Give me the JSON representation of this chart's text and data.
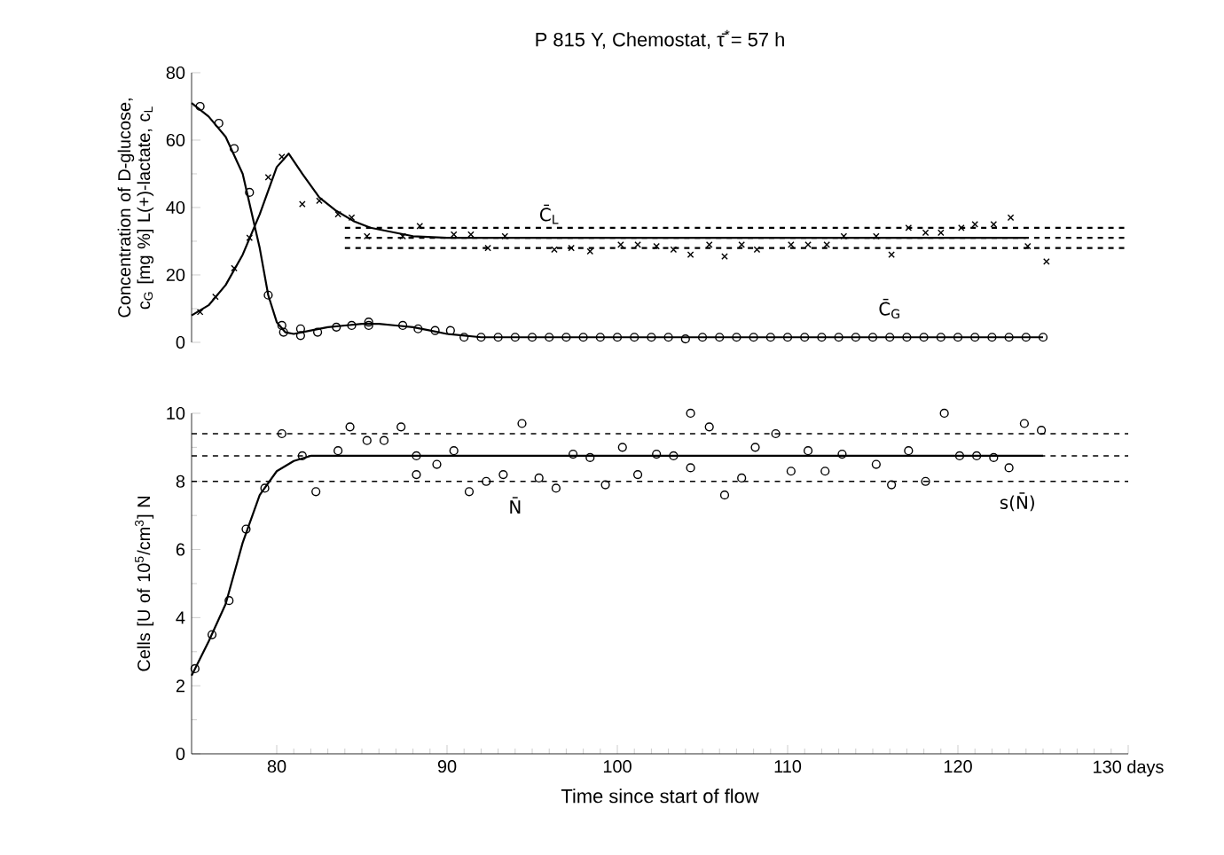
{
  "chart_data": [
    {
      "type": "scatter",
      "title": "P 815 Y, Chemostat, τ̄$^{*}$= 57 h",
      "ylabel": "Concentration of D-glucose, c$_{G}$ [mg %] L(+)-lactate, c$_{L}$",
      "xlim": [
        75,
        130
      ],
      "ylim": [
        0,
        80
      ],
      "yticks": [
        0,
        20,
        40,
        60,
        80
      ],
      "tick_labels": "y",
      "series": [
        {
          "color": "#000000",
          "marker": "circle",
          "x": [
            75.5,
            76.6,
            77.5,
            78.4,
            79.5,
            80.3,
            80.4,
            81.4,
            81.4,
            82.4,
            83.5,
            84.4,
            85.4,
            85.4,
            87.4,
            88.3,
            89.3,
            90.2,
            91,
            92,
            93,
            94,
            95,
            96,
            97,
            98,
            99,
            100,
            101,
            102,
            103,
            104,
            105,
            106,
            107,
            108,
            109,
            110,
            111,
            112,
            113,
            114,
            115,
            116,
            117,
            118,
            119,
            120,
            121,
            122,
            123,
            124,
            125
          ],
          "values": [
            70,
            65,
            57.5,
            44.5,
            14,
            5,
            3,
            4,
            2,
            3,
            4.5,
            5,
            6,
            5,
            5,
            4,
            3.5,
            3.5,
            1.5,
            1.5,
            1.5,
            1.5,
            1.5,
            1.5,
            1.5,
            1.5,
            1.5,
            1.5,
            1.5,
            1.5,
            1.5,
            1,
            1.5,
            1.5,
            1.5,
            1.5,
            1.5,
            1.5,
            1.5,
            1.5,
            1.5,
            1.5,
            1.5,
            1.5,
            1.5,
            1.5,
            1.5,
            1.5,
            1.5,
            1.5,
            1.5,
            1.5,
            1.5
          ]
        },
        {
          "type": "line",
          "color": "#000000",
          "line_style": "solid",
          "x": [
            75,
            76,
            77,
            78,
            79,
            79.5,
            80,
            80.5,
            81,
            82,
            83,
            84,
            85,
            86,
            87,
            88,
            89,
            90,
            92,
            100,
            125
          ],
          "values": [
            71,
            67,
            61,
            50,
            28,
            14,
            6,
            3,
            2.5,
            3.5,
            4.5,
            5,
            5.5,
            5.5,
            5,
            4.5,
            3.5,
            2.5,
            1.5,
            1.5,
            1.5
          ]
        },
        {
          "color": "#000000",
          "marker": "cross",
          "x": [
            75.5,
            76.4,
            77.5,
            78.4,
            79.5,
            80.3,
            81.5,
            82.5,
            83.6,
            84.4,
            85.3,
            87.4,
            88.4,
            90.4,
            91.4,
            92.4,
            93.4,
            96.3,
            97.3,
            98.4,
            100.2,
            101.2,
            102.3,
            103.3,
            104.3,
            105.4,
            106.3,
            107.3,
            108.2,
            110.2,
            111.2,
            112.3,
            113.3,
            115.2,
            116.1,
            117.1,
            118.1,
            119,
            120.2,
            121,
            122.1,
            123.1,
            124.1,
            125.2
          ],
          "values": [
            9,
            13.5,
            22,
            31,
            49,
            55,
            41,
            42,
            38,
            37,
            31.5,
            31.5,
            34.5,
            32,
            32,
            28,
            31.5,
            27.5,
            28,
            27,
            29,
            29,
            28.5,
            27.5,
            26,
            29,
            25.5,
            29,
            27.5,
            29,
            29,
            29,
            31.5,
            31.5,
            26,
            34,
            32.5,
            32.5,
            34,
            35,
            35,
            37,
            28.5,
            24
          ]
        },
        {
          "type": "line",
          "color": "#000000",
          "line_style": "solid",
          "x": [
            75,
            76,
            77,
            78,
            79,
            80,
            80.7,
            81.5,
            82.5,
            83.5,
            84.5,
            85.5,
            87,
            88,
            90,
            124
          ],
          "values": [
            8,
            11,
            17,
            26,
            38,
            52,
            56,
            50,
            43,
            39,
            36,
            34,
            32.5,
            31.5,
            31,
            31
          ]
        },
        {
          "type": "line",
          "color": "#000000",
          "line_style": "dashed",
          "x": [
            84,
            130
          ],
          "values": [
            31,
            31
          ]
        },
        {
          "type": "line",
          "color": "#000000",
          "line_style": "dashed",
          "x": [
            84,
            130
          ],
          "values": [
            34,
            34
          ]
        },
        {
          "type": "line",
          "color": "#000000",
          "line_style": "dashed",
          "x": [
            84,
            130
          ],
          "values": [
            28,
            28
          ]
        }
      ],
      "annotations": [
        {
          "text": "C̄$_{L}$",
          "x": 96,
          "y": 38
        },
        {
          "text": "C̄$_{G}$",
          "x": 116,
          "y": 10
        }
      ]
    },
    {
      "type": "scatter",
      "xlabel": "Time since start of flow",
      "ylabel": "Cells [U of 10$^{5}$/cm$^{3}$] N",
      "xlim": [
        75,
        130
      ],
      "xticks": [
        80,
        90,
        100,
        110,
        120,
        {
          "value": 130,
          "label": "130 days"
        }
      ],
      "ylim": [
        0,
        10
      ],
      "yticks": [
        0,
        2,
        4,
        6,
        8,
        10
      ],
      "series": [
        {
          "color": "#000000",
          "marker": "circle",
          "x": [
            75.2,
            76.2,
            77.2,
            78.2,
            79.3,
            80.3,
            81.5,
            82.3,
            83.6,
            84.3,
            85.3,
            86.3,
            87.3,
            88.2,
            88.2,
            89.4,
            90.4,
            91.3,
            92.3,
            93.3,
            94.4,
            95.4,
            96.4,
            97.4,
            98.4,
            99.3,
            100.3,
            101.2,
            102.3,
            103.3,
            104.3,
            104.3,
            105.4,
            106.3,
            107.3,
            108.1,
            109.3,
            110.2,
            111.2,
            112.2,
            113.2,
            115.2,
            116.1,
            117.1,
            118.1,
            119.2,
            120.1,
            121.1,
            122.1,
            123,
            123.9,
            124.9
          ],
          "values": [
            2.5,
            3.5,
            4.5,
            6.6,
            7.8,
            9.4,
            8.75,
            7.7,
            8.9,
            9.6,
            9.2,
            9.2,
            9.6,
            8.75,
            8.2,
            8.5,
            8.9,
            7.7,
            8.0,
            8.2,
            9.7,
            8.1,
            7.8,
            8.8,
            8.7,
            7.9,
            9.0,
            8.2,
            8.8,
            8.75,
            10.0,
            8.4,
            9.6,
            7.6,
            8.1,
            9.0,
            9.4,
            8.3,
            8.9,
            8.3,
            8.8,
            8.5,
            7.9,
            8.9,
            8.0,
            10.0,
            8.75,
            8.75,
            8.7,
            8.4,
            9.7,
            9.5
          ]
        },
        {
          "type": "line",
          "color": "#000000",
          "line_style": "solid",
          "x": [
            75,
            76,
            77,
            78,
            79,
            80,
            81,
            82,
            125
          ],
          "values": [
            2.3,
            3.3,
            4.4,
            6.2,
            7.6,
            8.3,
            8.6,
            8.75,
            8.75
          ]
        }
      ],
      "ref_lines": [
        {
          "axis": "y",
          "value": 8.75,
          "line_style": "dashed",
          "color": "#000000"
        },
        {
          "axis": "y",
          "value": 9.4,
          "line_style": "dashed",
          "color": "#000000"
        },
        {
          "axis": "y",
          "value": 8.0,
          "line_style": "dashed",
          "color": "#000000"
        }
      ],
      "annotations": [
        {
          "text": "N̄",
          "x": 94,
          "y": 7.3
        },
        {
          "text": "s(N̄)",
          "x": 123.5,
          "y": 7.4
        }
      ]
    }
  ]
}
